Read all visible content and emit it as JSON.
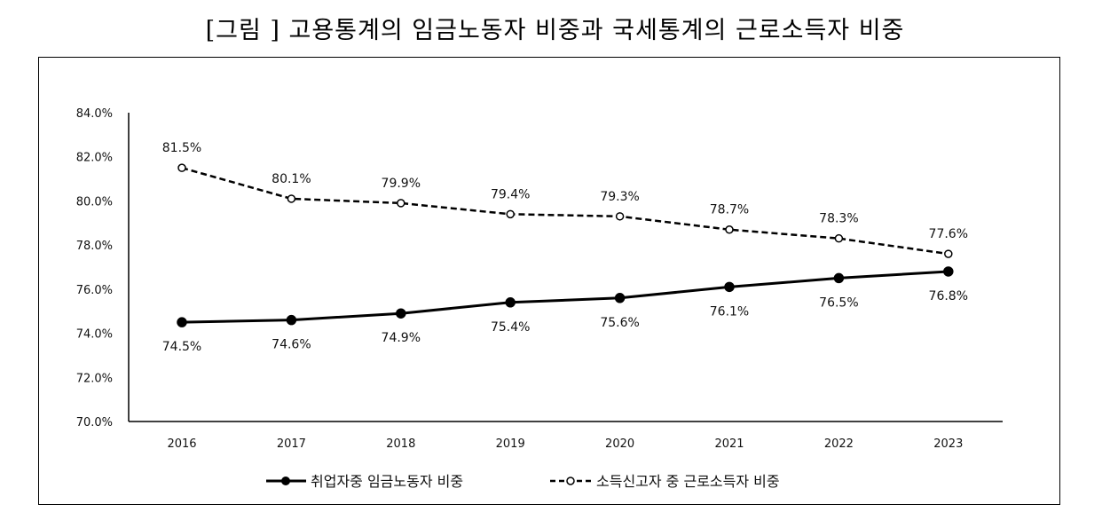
{
  "chart_data": {
    "type": "line",
    "title": "[그림 ] 고용통계의 임금노동자 비중과 국세통계의 근로소득자 비중",
    "xlabel": "",
    "ylabel": "",
    "x": [
      "2016",
      "2017",
      "2018",
      "2019",
      "2020",
      "2021",
      "2022",
      "2023"
    ],
    "ylim": [
      70,
      84
    ],
    "yticks": [
      "70.0%",
      "72.0%",
      "74.0%",
      "76.0%",
      "78.0%",
      "80.0%",
      "82.0%",
      "84.0%"
    ],
    "ytick_values": [
      70,
      72,
      74,
      76,
      78,
      80,
      82,
      84
    ],
    "grid": false,
    "legend_position": "bottom",
    "series": [
      {
        "name": "취업자중 임금노동자  비중",
        "style": "solid-filled-circle",
        "color": "#000000",
        "values": [
          74.5,
          74.6,
          74.9,
          75.4,
          75.6,
          76.1,
          76.5,
          76.8
        ],
        "labels": [
          "74.5%",
          "74.6%",
          "74.9%",
          "75.4%",
          "75.6%",
          "76.1%",
          "76.5%",
          "76.8%"
        ],
        "label_position": "below"
      },
      {
        "name": "소득신고자 중 근로소득자 비중",
        "style": "dashed-open-circle",
        "color": "#000000",
        "values": [
          81.5,
          80.1,
          79.9,
          79.4,
          79.3,
          78.7,
          78.3,
          77.6
        ],
        "labels": [
          "81.5%",
          "80.1%",
          "79.9%",
          "79.4%",
          "79.3%",
          "78.7%",
          "78.3%",
          "77.6%"
        ],
        "label_position": "above"
      }
    ]
  }
}
